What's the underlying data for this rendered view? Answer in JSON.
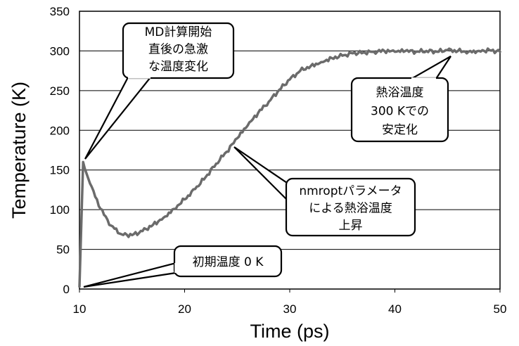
{
  "chart_data": {
    "type": "line",
    "xlabel": "Time (ps)",
    "ylabel": "Temperature (K)",
    "xlim": [
      10,
      50
    ],
    "ylim": [
      0,
      350
    ],
    "xticks": [
      "10",
      "20",
      "30",
      "40",
      "50"
    ],
    "yticks": [
      "0",
      "50",
      "100",
      "150",
      "200",
      "250",
      "300",
      "350"
    ],
    "grid": "horizontal",
    "line_color": "#6b6b6b",
    "series": [
      {
        "x": [
          10.0,
          10.35,
          10.5,
          11,
          12,
          13,
          14,
          15,
          16,
          17,
          18,
          19,
          20,
          21,
          22,
          23,
          24,
          25,
          26,
          27,
          28,
          29,
          30,
          31,
          32,
          33,
          34,
          35,
          36,
          37,
          38,
          39,
          40,
          41,
          42,
          43,
          44,
          45,
          46,
          47,
          48,
          49,
          50
        ],
        "values": [
          3,
          160,
          152,
          133,
          101,
          80,
          69,
          68,
          73,
          81,
          90,
          101,
          113,
          126,
          141,
          158,
          173,
          190,
          206,
          222,
          236,
          251,
          264,
          275,
          281,
          286,
          291,
          294,
          297,
          298,
          299,
          300,
          299,
          300,
          299,
          300,
          299,
          301,
          300,
          299,
          300,
          301,
          299
        ]
      }
    ],
    "annotations": [
      {
        "text": [
          "MD計算開始",
          "直後の急激",
          "な温度変化"
        ]
      },
      {
        "text": [
          "熱浴温度",
          "300 Kでの",
          "安定化"
        ]
      },
      {
        "text": [
          "nmroptパラメータ",
          "による熱浴温度",
          "上昇"
        ]
      },
      {
        "text": [
          "初期温度 0 K"
        ]
      }
    ]
  }
}
